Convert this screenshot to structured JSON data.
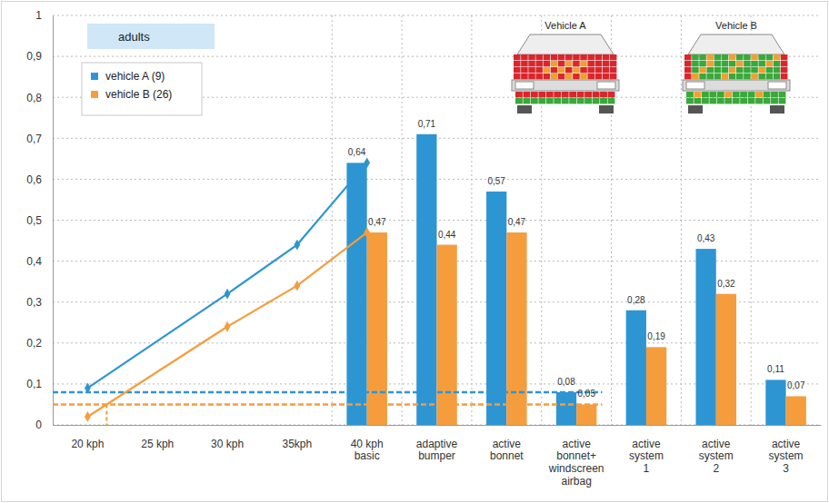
{
  "chart_data": {
    "type": "bar",
    "title": "adults",
    "categories": [
      "20 kph",
      "25 kph",
      "30 kph",
      "35kph",
      "40 kph basic",
      "adaptive bumper",
      "active bonnet",
      "active bonnet+ windscreen airbag",
      "active system 1",
      "active system 2",
      "active system 3"
    ],
    "series": [
      {
        "name": "vehicle A (9)",
        "type": "bar",
        "color": "#2e95d3",
        "values": [
          null,
          null,
          null,
          null,
          0.64,
          0.71,
          0.57,
          0.08,
          0.28,
          0.43,
          0.11
        ],
        "value_labels": [
          null,
          null,
          null,
          null,
          "0,64",
          "0,71",
          "0,57",
          "0,08",
          "0,28",
          "0,43",
          "0,11"
        ]
      },
      {
        "name": "vehicle B (26)",
        "type": "bar",
        "color": "#f59d3d",
        "values": [
          null,
          null,
          null,
          null,
          0.47,
          0.44,
          0.47,
          0.05,
          0.19,
          0.32,
          0.07
        ],
        "value_labels": [
          null,
          null,
          null,
          null,
          "0,47",
          "0,44",
          "0,47",
          "0,05",
          "0,19",
          "0,32",
          "0,07"
        ]
      },
      {
        "type": "line",
        "color": "#2e95d3",
        "marker": "diamond",
        "x": [
          "20 kph",
          "30 kph",
          "35kph",
          "40 kph basic"
        ],
        "values": [
          0.09,
          0.32,
          0.44,
          0.64
        ]
      },
      {
        "type": "line",
        "color": "#f59d3d",
        "marker": "diamond",
        "x": [
          "20 kph",
          "30 kph",
          "35kph",
          "40 kph basic"
        ],
        "values": [
          0.02,
          0.24,
          0.34,
          0.47
        ]
      }
    ],
    "ylim": [
      0,
      1
    ],
    "yticks": [
      0,
      {
        "value": 0.1,
        "label": "0,1"
      },
      {
        "value": 0.2,
        "label": "0,2"
      },
      {
        "value": 0.3,
        "label": "0,3"
      },
      {
        "value": 0.4,
        "label": "0,4"
      },
      {
        "value": 0.5,
        "label": "0,5"
      },
      {
        "value": 0.6,
        "label": "0,6"
      },
      {
        "value": 0.7,
        "label": "0,7"
      },
      {
        "value": 0.8,
        "label": "0,8"
      },
      {
        "value": 0.9,
        "label": "0,9"
      },
      1
    ],
    "grid": true,
    "legend": "top-left",
    "data_labels": true,
    "annotations": [
      {
        "text": "Vehicle A"
      },
      {
        "text": "Vehicle B"
      }
    ]
  }
}
